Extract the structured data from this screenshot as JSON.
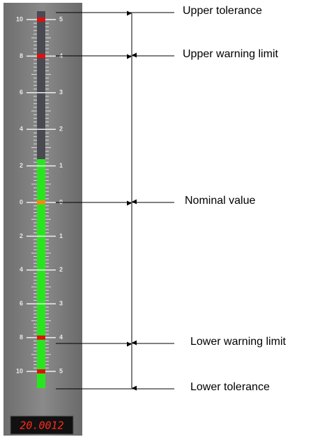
{
  "gauge": {
    "left_scale": [
      10,
      8,
      6,
      4,
      2,
      0,
      2,
      4,
      6,
      8,
      10
    ],
    "right_scale": [
      5,
      4,
      3,
      2,
      1,
      0,
      1,
      2,
      3,
      4,
      5
    ],
    "display": "20.0012"
  },
  "annotations": [
    "Upper tolerance",
    "Upper warning limit",
    "Nominal value",
    "Lower warning limit",
    "Lower tolerance"
  ]
}
